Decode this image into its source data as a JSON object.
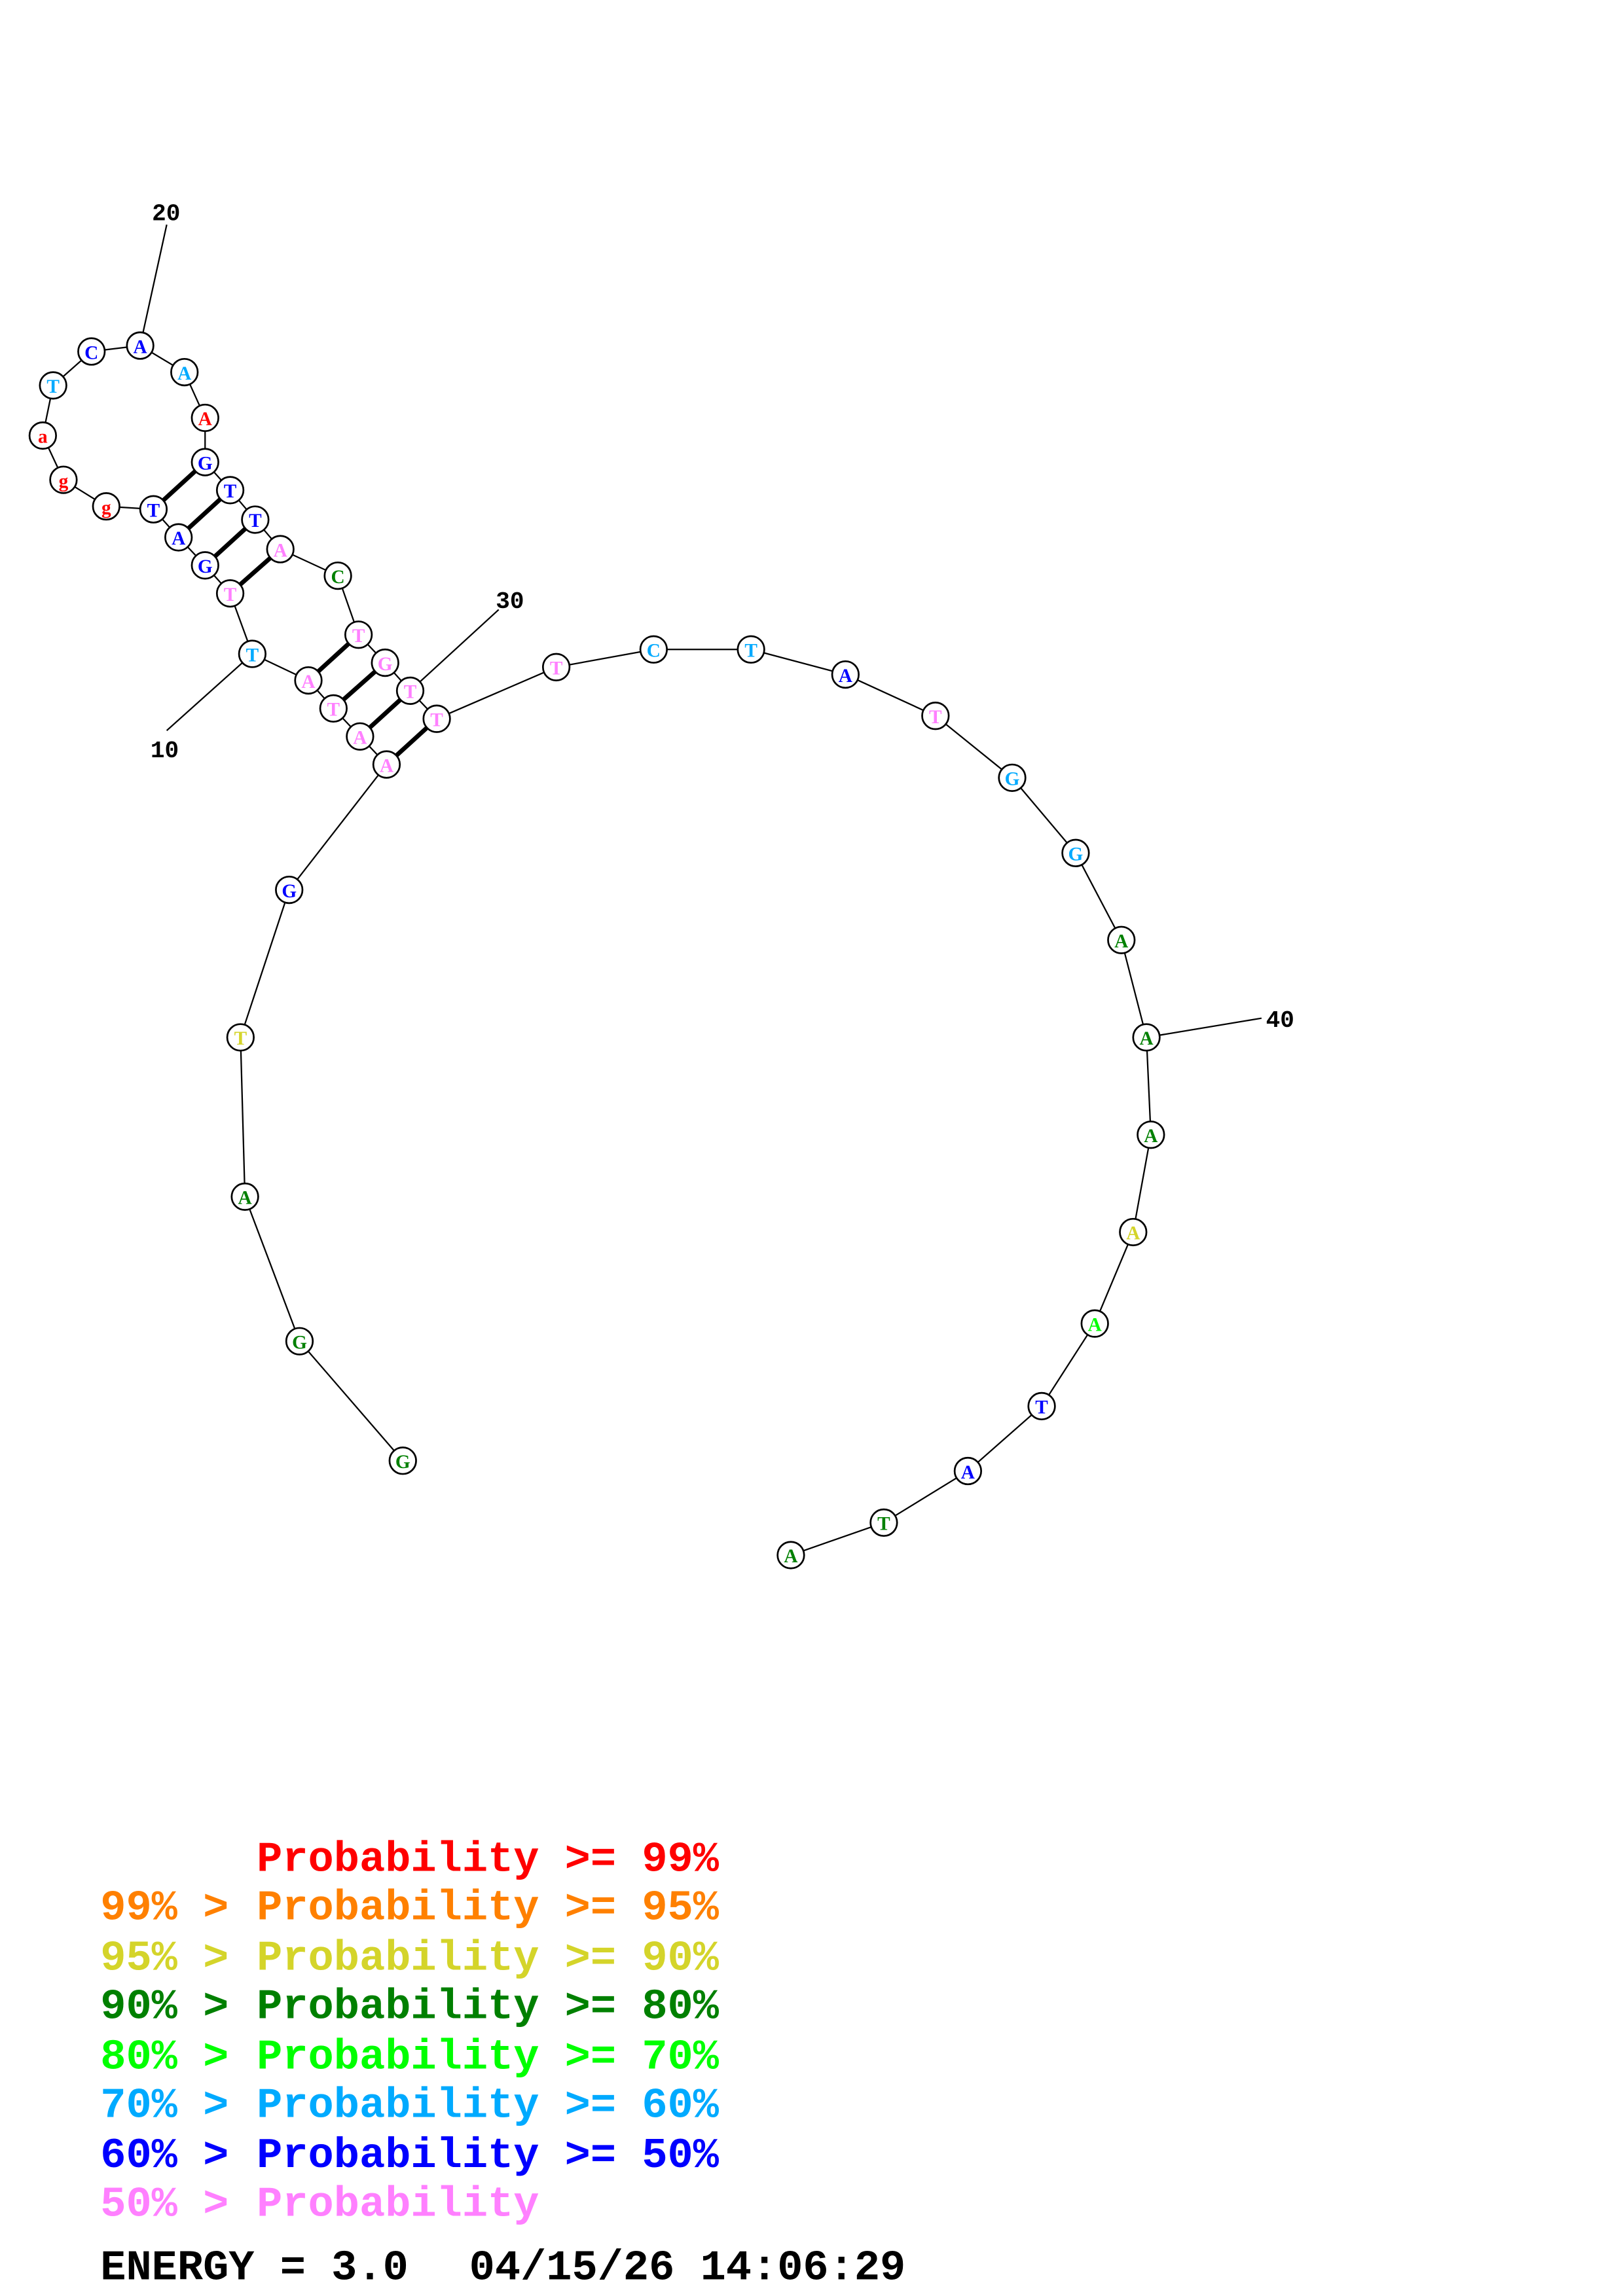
{
  "structure": {
    "sequence": [
      {
        "base": "G",
        "prob": "dg"
      },
      {
        "base": "G",
        "prob": "dg"
      },
      {
        "base": "A",
        "prob": "dg"
      },
      {
        "base": "T",
        "prob": "y"
      },
      {
        "base": "G",
        "prob": "b"
      },
      {
        "base": "A",
        "prob": "p"
      },
      {
        "base": "A",
        "prob": "p"
      },
      {
        "base": "T",
        "prob": "p"
      },
      {
        "base": "A",
        "prob": "p"
      },
      {
        "base": "T",
        "prob": "c"
      },
      {
        "base": "T",
        "prob": "p"
      },
      {
        "base": "G",
        "prob": "b"
      },
      {
        "base": "A",
        "prob": "b"
      },
      {
        "base": "T",
        "prob": "b"
      },
      {
        "base": "g",
        "prob": "r"
      },
      {
        "base": "g",
        "prob": "r"
      },
      {
        "base": "a",
        "prob": "r"
      },
      {
        "base": "T",
        "prob": "c"
      },
      {
        "base": "C",
        "prob": "b"
      },
      {
        "base": "A",
        "prob": "b"
      },
      {
        "base": "A",
        "prob": "c"
      },
      {
        "base": "A",
        "prob": "r"
      },
      {
        "base": "G",
        "prob": "b"
      },
      {
        "base": "T",
        "prob": "b"
      },
      {
        "base": "T",
        "prob": "b"
      },
      {
        "base": "A",
        "prob": "p"
      },
      {
        "base": "C",
        "prob": "dg"
      },
      {
        "base": "T",
        "prob": "p"
      },
      {
        "base": "G",
        "prob": "p"
      },
      {
        "base": "T",
        "prob": "p"
      },
      {
        "base": "T",
        "prob": "p"
      },
      {
        "base": "T",
        "prob": "p"
      },
      {
        "base": "C",
        "prob": "c"
      },
      {
        "base": "T",
        "prob": "c"
      },
      {
        "base": "A",
        "prob": "b"
      },
      {
        "base": "T",
        "prob": "p"
      },
      {
        "base": "G",
        "prob": "c"
      },
      {
        "base": "G",
        "prob": "c"
      },
      {
        "base": "A",
        "prob": "dg"
      },
      {
        "base": "A",
        "prob": "dg"
      },
      {
        "base": "A",
        "prob": "dg"
      },
      {
        "base": "A",
        "prob": "y"
      },
      {
        "base": "A",
        "prob": "g"
      },
      {
        "base": "T",
        "prob": "b"
      },
      {
        "base": "A",
        "prob": "b"
      },
      {
        "base": "T",
        "prob": "dg"
      },
      {
        "base": "A",
        "prob": "dg"
      }
    ],
    "pairs": [
      [
        11,
        26
      ],
      [
        12,
        25
      ],
      [
        13,
        24
      ],
      [
        14,
        23
      ],
      [
        6,
        31
      ],
      [
        7,
        30
      ],
      [
        8,
        29
      ],
      [
        9,
        28
      ]
    ],
    "position_labels": [
      "10",
      "20",
      "30",
      "40"
    ]
  },
  "colors": {
    "r": "#ff0000",
    "o": "#ff8000",
    "y": "#d4d42a",
    "dg": "#008000",
    "g": "#00ff00",
    "c": "#00aaff",
    "b": "#0000ff",
    "p": "#ff80ff"
  },
  "legend": [
    {
      "prefix": "",
      "text": "Probability >= 99%",
      "color": "#ff0000"
    },
    {
      "prefix": "99% >",
      "text": "Probability >= 95%",
      "color": "#ff8000"
    },
    {
      "prefix": "95% >",
      "text": "Probability >= 90%",
      "color": "#d4d42a"
    },
    {
      "prefix": "90% >",
      "text": "Probability >= 80%",
      "color": "#008000"
    },
    {
      "prefix": "80% >",
      "text": "Probability >= 70%",
      "color": "#00ff00"
    },
    {
      "prefix": "70% >",
      "text": "Probability >= 60%",
      "color": "#00aaff"
    },
    {
      "prefix": "60% >",
      "text": "Probability >= 50%",
      "color": "#0000ff"
    },
    {
      "prefix": "50% >",
      "text": "Probability",
      "color": "#ff80ff"
    }
  ],
  "footer": {
    "energy": "ENERGY = 3.0",
    "timestamp": "04/15/26 14:06:29"
  }
}
